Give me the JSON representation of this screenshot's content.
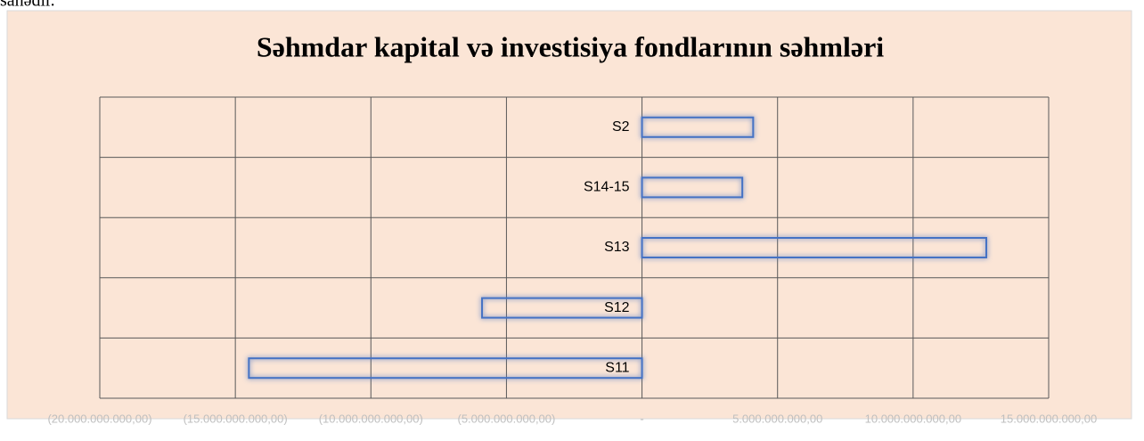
{
  "page_text": "sahədir.",
  "chart_data": {
    "type": "barh",
    "title": "Səhmdar kapital və  investisiya fondlarının səhmləri",
    "categories": [
      "S2",
      "S14-15",
      "S13",
      "S12",
      "S11"
    ],
    "values": [
      4100000000,
      3700000000,
      12700000000,
      -5900000000,
      -14500000000
    ],
    "color": "#4472c4",
    "xlim": [
      -20000000000,
      15000000000
    ],
    "xticks": [
      {
        "value": -20000000000,
        "label": "(20.000.000.000,00)"
      },
      {
        "value": -15000000000,
        "label": "(15.000.000.000,00)"
      },
      {
        "value": -10000000000,
        "label": "(10.000.000.000,00)"
      },
      {
        "value": -5000000000,
        "label": "(5.000.000.000,00)"
      },
      {
        "value": 0,
        "label": "-"
      },
      {
        "value": 5000000000,
        "label": "5.000.000.000,00"
      },
      {
        "value": 10000000000,
        "label": "10.000.000.000,00"
      },
      {
        "value": 15000000000,
        "label": "15.000.000.000,00"
      }
    ],
    "grid": true
  }
}
